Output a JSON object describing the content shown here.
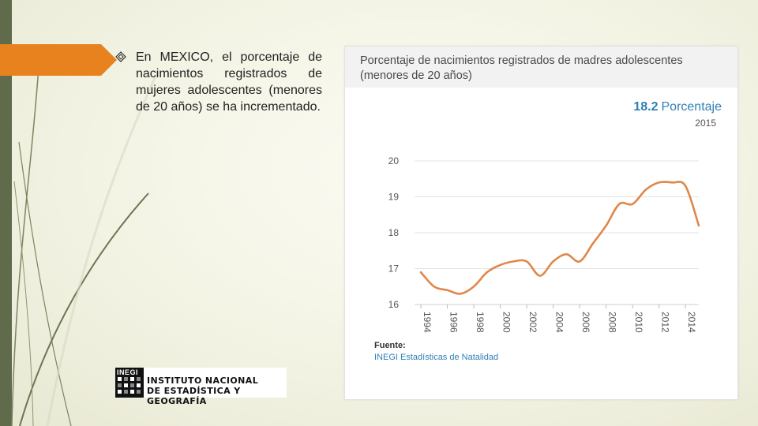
{
  "slide": {
    "bullet_text": "En MEXICO, el porcentaje de nacimientos registrados de mujeres adolescentes (menores de 20 años) se ha incrementado."
  },
  "chart_panel": {
    "title": "Porcentaje de nacimientos registrados de madres adolescentes (menores de 20 años)",
    "kpi_value": "18.2",
    "kpi_unit": "Porcentaje",
    "kpi_year": "2015",
    "source_label": "Fuente:",
    "source_link": "INEGI Estadísticas de Natalidad"
  },
  "logo": {
    "mark": "INEGI",
    "line1": "INSTITUTO NACIONAL",
    "line2": "DE ESTADÍSTICA Y GEOGRAFÍA"
  },
  "colors": {
    "line": "#e0874a",
    "accent": "#2f7fb5",
    "sidebar": "#5f6b4a",
    "tab": "#e8821e"
  },
  "chart_data": {
    "type": "line",
    "title": "Porcentaje de nacimientos registrados de madres adolescentes (menores de 20 años)",
    "xlabel": "",
    "ylabel": "",
    "x_ticks": [
      "1994",
      "1996",
      "1998",
      "2000",
      "2002",
      "2004",
      "2006",
      "2008",
      "2010",
      "2012",
      "2014"
    ],
    "y_ticks": [
      16,
      17,
      18,
      19,
      20
    ],
    "xlim": [
      1994,
      2015
    ],
    "ylim": [
      16,
      20
    ],
    "grid": true,
    "series": [
      {
        "name": "Porcentaje",
        "x": [
          1994,
          1995,
          1996,
          1997,
          1998,
          1999,
          2000,
          2001,
          2002,
          2003,
          2004,
          2005,
          2006,
          2007,
          2008,
          2009,
          2010,
          2011,
          2012,
          2013,
          2014,
          2015
        ],
        "values": [
          16.9,
          16.5,
          16.4,
          16.3,
          16.5,
          16.9,
          17.1,
          17.2,
          17.2,
          16.8,
          17.2,
          17.4,
          17.2,
          17.7,
          18.2,
          18.8,
          18.8,
          19.2,
          19.4,
          19.4,
          19.3,
          18.2
        ]
      }
    ]
  }
}
